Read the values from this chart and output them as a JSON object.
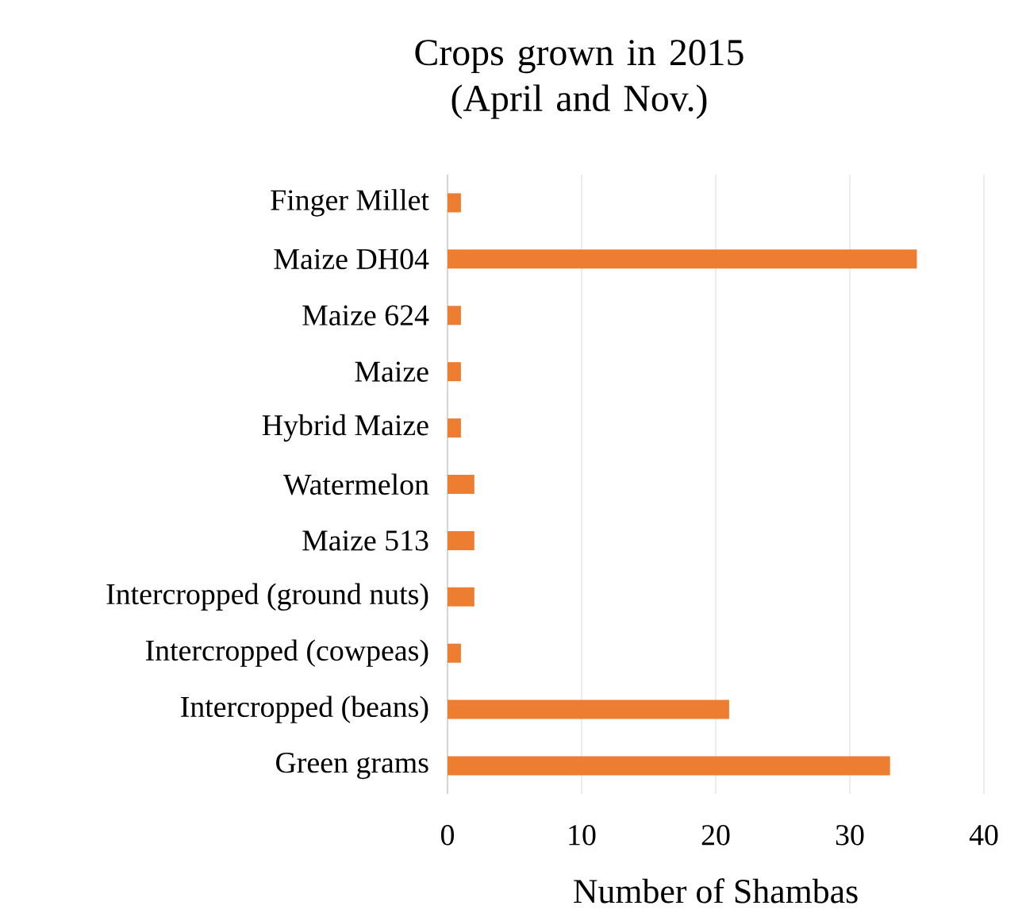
{
  "chart_data": {
    "type": "bar",
    "orientation": "horizontal",
    "title": "Crops grown in 2015\n(April and Nov.)",
    "xlabel": "Number of Shambas",
    "categories": [
      "Finger Millet",
      "Maize DH04",
      "Maize 624",
      "Maize",
      "Hybrid Maize",
      "Watermelon",
      "Maize 513",
      "Intercropped (ground nuts)",
      "Intercropped (cowpeas)",
      "Intercropped (beans)",
      "Green grams"
    ],
    "values": [
      1,
      35,
      1,
      1,
      1,
      2,
      2,
      2,
      1,
      21,
      33
    ],
    "color": "#ed7d31",
    "xlim": [
      0,
      40
    ],
    "xticks": [
      0,
      10,
      20,
      30,
      40
    ],
    "grid": "x"
  }
}
